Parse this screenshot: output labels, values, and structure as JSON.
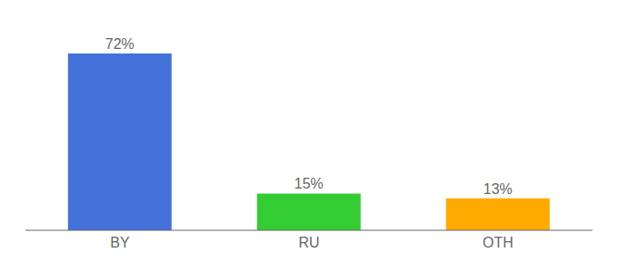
{
  "chart_data": {
    "type": "bar",
    "categories": [
      "BY",
      "RU",
      "OTH"
    ],
    "values": [
      72,
      15,
      13
    ],
    "value_labels": [
      "72%",
      "15%",
      "13%"
    ],
    "data_labels": true,
    "colors": [
      "#4472db",
      "#33cc33",
      "#ffaa00"
    ],
    "ylim": [
      0,
      82
    ],
    "tick_labels": "x"
  }
}
